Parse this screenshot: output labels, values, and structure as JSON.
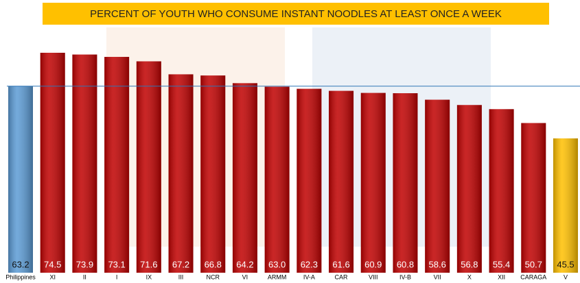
{
  "chart_data": {
    "type": "bar",
    "title": "PERCENT OF YOUTH WHO CONSUME INSTANT NOODLES AT LEAST ONCE A WEEK",
    "categories": [
      "Philippines",
      "XI",
      "II",
      "I",
      "IX",
      "III",
      "NCR",
      "VI",
      "ARMM",
      "IV-A",
      "CAR",
      "VIII",
      "IV-B",
      "VII",
      "X",
      "XII",
      "CARAGA",
      "V"
    ],
    "values": [
      63.2,
      74.5,
      73.9,
      73.1,
      71.6,
      67.2,
      66.8,
      64.2,
      63.0,
      62.3,
      61.6,
      60.9,
      60.8,
      58.6,
      56.8,
      55.4,
      50.7,
      45.5
    ],
    "value_labels": [
      "63.2",
      "74.5",
      "73.9",
      "73.1",
      "71.6",
      "67.2",
      "66.8",
      "64.2",
      "63.0",
      "62.3",
      "61.6",
      "60.9",
      "60.8",
      "58.6",
      "56.8",
      "55.4",
      "50.7",
      "45.5"
    ],
    "colors": [
      "#5b9bd5",
      "#c00000",
      "#c00000",
      "#c00000",
      "#c00000",
      "#c00000",
      "#c00000",
      "#c00000",
      "#c00000",
      "#c00000",
      "#c00000",
      "#c00000",
      "#c00000",
      "#c00000",
      "#c00000",
      "#c00000",
      "#c00000",
      "#ffc000"
    ],
    "reference_line_color": "#2e75b6"
  }
}
